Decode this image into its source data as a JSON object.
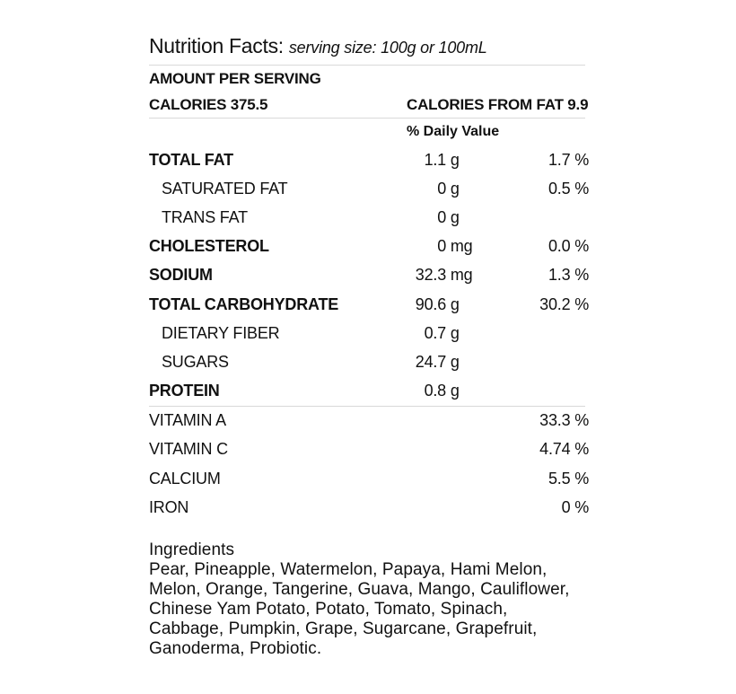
{
  "header": {
    "title": "Nutrition Facts:",
    "serving": "serving size: 100g or 100mL"
  },
  "amount_per_serving": "AMOUNT PER SERVING",
  "calories": "CALORIES 375.5",
  "calories_from_fat": "CALORIES FROM FAT 9.9",
  "daily_value_label": "% Daily Value",
  "nutrients": [
    {
      "label": "TOTAL FAT",
      "amount": "1.1",
      "unit": "g",
      "dv": "1.7 %"
    },
    {
      "label": "SATURATED FAT",
      "amount": "0",
      "unit": "g",
      "dv": "0.5 %"
    },
    {
      "label": "TRANS FAT",
      "amount": "0",
      "unit": "g",
      "dv": ""
    },
    {
      "label": "CHOLESTEROL",
      "amount": "0",
      "unit": "mg",
      "dv": "0.0 %"
    },
    {
      "label": "SODIUM",
      "amount": "32.3",
      "unit": "mg",
      "dv": "1.3 %"
    },
    {
      "label": "TOTAL CARBOHYDRATE",
      "amount": "90.6",
      "unit": "g",
      "dv": "30.2 %"
    },
    {
      "label": "DIETARY FIBER",
      "amount": "0.7",
      "unit": "g",
      "dv": ""
    },
    {
      "label": "SUGARS",
      "amount": "24.7",
      "unit": "g",
      "dv": ""
    },
    {
      "label": "PROTEIN",
      "amount": "0.8",
      "unit": "g",
      "dv": ""
    }
  ],
  "vitamins": [
    {
      "label": "VITAMIN A",
      "dv": "33.3 %"
    },
    {
      "label": "VITAMIN C",
      "dv": "4.74 %"
    },
    {
      "label": "CALCIUM",
      "dv": "5.5 %"
    },
    {
      "label": "IRON",
      "dv": "0 %"
    }
  ],
  "ingredients": {
    "title": "Ingredients",
    "lines": [
      "Pear, Pineapple, Watermelon, Papaya, Hami Melon,",
      "Melon, Orange, Tangerine, Guava, Mango, Cauliflower,",
      "Chinese Yam Potato, Potato, Tomato, Spinach,",
      "Cabbage, Pumpkin, Grape, Sugarcane, Grapefruit,",
      "Ganoderma, Probiotic."
    ]
  }
}
